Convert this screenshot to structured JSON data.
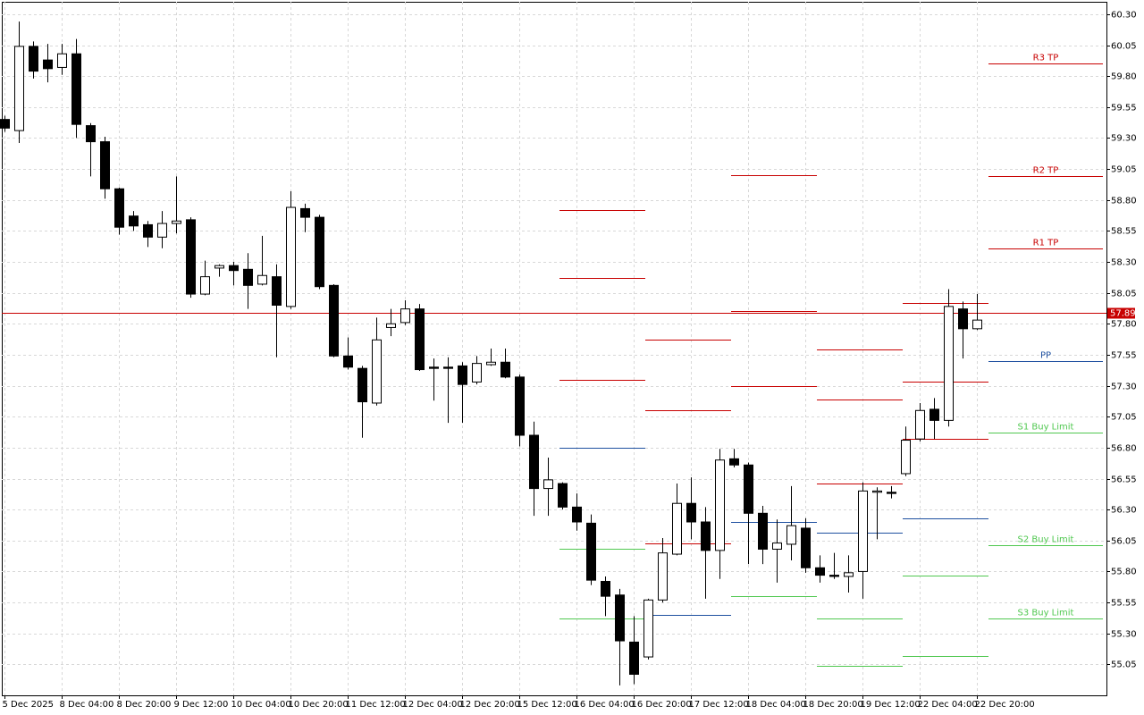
{
  "chart_data": {
    "type": "candlestick",
    "categories": [
      "5 Dec 2025",
      null,
      null,
      null,
      "8 Dec 04:00",
      null,
      null,
      null,
      "8 Dec 20:00",
      null,
      null,
      null,
      "9 Dec 12:00",
      null,
      null,
      null,
      "10 Dec 04:00",
      null,
      null,
      null,
      "10 Dec 20:00",
      null,
      null,
      null,
      "11 Dec 12:00",
      null,
      null,
      null,
      "12 Dec 04:00",
      null,
      null,
      null,
      "12 Dec 20:00",
      null,
      null,
      null,
      "15 Dec 12:00",
      null,
      null,
      null,
      "16 Dec 04:00",
      null,
      null,
      null,
      "16 Dec 20:00",
      null,
      null,
      null,
      "17 Dec 12:00",
      null,
      null,
      null,
      "18 Dec 04:00",
      null,
      null,
      null,
      "18 Dec 20:00",
      null,
      null,
      null,
      "19 Dec 12:00",
      null,
      null,
      null,
      "22 Dec 04:00",
      null,
      null,
      null,
      "22 Dec 20:00"
    ],
    "open": [
      59.45,
      59.36,
      60.04,
      59.93,
      59.87,
      59.98,
      59.4,
      59.27,
      58.89,
      58.67,
      58.6,
      58.5,
      58.61,
      58.64,
      58.04,
      58.25,
      58.27,
      58.24,
      58.12,
      58.18,
      57.94,
      58.73,
      58.66,
      58.11,
      57.54,
      57.44,
      57.16,
      57.77,
      57.81,
      57.92,
      57.45,
      57.45,
      57.46,
      57.33,
      57.47,
      57.49,
      57.37,
      56.9,
      56.47,
      56.51,
      56.32,
      56.19,
      55.72,
      55.61,
      55.23,
      55.11,
      55.57,
      55.94,
      56.35,
      56.2,
      55.97,
      56.71,
      56.66,
      56.27,
      55.98,
      56.02,
      56.15,
      55.83,
      55.77,
      55.76,
      55.8,
      56.44,
      56.44,
      56.59,
      56.87,
      57.11,
      57.02,
      57.92,
      57.76
    ],
    "high": [
      59.48,
      60.24,
      60.08,
      60.06,
      60.06,
      60.1,
      59.42,
      59.31,
      58.9,
      58.71,
      58.63,
      58.71,
      58.99,
      58.66,
      58.31,
      58.28,
      58.3,
      58.37,
      58.51,
      58.28,
      58.87,
      58.77,
      58.68,
      58.12,
      57.69,
      57.46,
      57.85,
      57.92,
      57.99,
      57.96,
      57.52,
      57.53,
      57.49,
      57.54,
      57.6,
      57.6,
      57.39,
      57.01,
      56.72,
      56.52,
      56.43,
      56.26,
      55.76,
      55.66,
      55.44,
      55.58,
      56.07,
      56.51,
      56.56,
      56.32,
      56.79,
      56.79,
      56.68,
      56.33,
      56.22,
      56.49,
      56.23,
      55.93,
      55.95,
      55.93,
      56.52,
      56.48,
      56.49,
      56.97,
      57.16,
      57.2,
      58.08,
      57.98,
      58.04
    ],
    "low": [
      59.35,
      59.26,
      59.78,
      59.75,
      59.81,
      59.3,
      58.99,
      58.81,
      58.52,
      58.55,
      58.42,
      58.41,
      58.53,
      58.01,
      58.03,
      58.18,
      58.11,
      57.92,
      58.11,
      57.53,
      57.92,
      58.54,
      58.08,
      57.53,
      57.43,
      56.88,
      57.14,
      57.7,
      57.79,
      57.42,
      57.18,
      57.0,
      57.0,
      57.31,
      57.46,
      57.36,
      56.81,
      56.25,
      56.25,
      56.3,
      56.13,
      55.69,
      55.44,
      54.88,
      54.89,
      55.09,
      55.55,
      55.93,
      56.06,
      55.58,
      55.74,
      56.64,
      55.86,
      55.86,
      55.71,
      55.89,
      55.79,
      55.71,
      55.74,
      55.63,
      55.58,
      56.06,
      56.39,
      56.57,
      56.85,
      56.87,
      56.97,
      57.52,
      57.75
    ],
    "close": [
      59.38,
      60.04,
      59.84,
      59.86,
      59.98,
      59.41,
      59.27,
      58.89,
      58.58,
      58.59,
      58.5,
      58.61,
      58.63,
      58.04,
      58.18,
      58.27,
      58.23,
      58.11,
      58.19,
      57.95,
      58.74,
      58.66,
      58.1,
      57.54,
      57.45,
      57.17,
      57.67,
      57.8,
      57.92,
      57.43,
      57.44,
      57.44,
      57.31,
      57.48,
      57.49,
      57.37,
      56.9,
      56.47,
      56.54,
      56.32,
      56.2,
      55.73,
      55.6,
      55.24,
      54.97,
      55.57,
      55.95,
      56.35,
      56.2,
      55.97,
      56.7,
      56.66,
      56.27,
      55.98,
      56.03,
      56.17,
      55.83,
      55.77,
      55.76,
      55.79,
      56.45,
      56.45,
      56.43,
      56.86,
      57.1,
      57.02,
      57.94,
      57.76,
      57.83
    ],
    "up_color": "#ffffff",
    "down_color": "#000000",
    "ylim": [
      54.8,
      60.4
    ],
    "yticks": [
      {
        "value": 60.3,
        "label": "60.30"
      },
      60.05,
      {
        "value": 59.8,
        "label": "59.80"
      },
      59.55,
      {
        "value": 59.3,
        "label": "59.30"
      },
      59.05,
      {
        "value": 58.8,
        "label": "58.80"
      },
      58.55,
      {
        "value": 58.3,
        "label": "58.30"
      },
      58.05,
      {
        "value": 57.8,
        "label": "57.80"
      },
      57.55,
      {
        "value": 57.3,
        "label": "57.30"
      },
      57.05,
      {
        "value": 56.8,
        "label": "56.80"
      },
      56.55,
      {
        "value": 56.3,
        "label": "56.30"
      },
      56.05,
      {
        "value": 55.8,
        "label": "55.80"
      },
      55.55,
      {
        "value": 55.3,
        "label": "55.30"
      },
      55.05
    ],
    "grid": true,
    "bid": 57.89,
    "bid_color": "#c80000",
    "levels": [
      {
        "value": 58.72,
        "color": "#c80000",
        "from": 39,
        "to": 45
      },
      {
        "value": 58.17,
        "color": "#c80000",
        "from": 39,
        "to": 45
      },
      {
        "value": 57.35,
        "color": "#c80000",
        "from": 39,
        "to": 45
      },
      {
        "value": 56.8,
        "color": "#1e50a0",
        "from": 39,
        "to": 45
      },
      {
        "value": 55.98,
        "color": "#50c850",
        "from": 39,
        "to": 45
      },
      {
        "value": 55.42,
        "color": "#50c850",
        "from": 39,
        "to": 45
      },
      {
        "value": 57.67,
        "color": "#c80000",
        "from": 45,
        "to": 51
      },
      {
        "value": 57.1,
        "color": "#c80000",
        "from": 45,
        "to": 51
      },
      {
        "value": 56.03,
        "color": "#c80000",
        "from": 45,
        "to": 51
      },
      {
        "value": 55.45,
        "color": "#1e50a0",
        "from": 45,
        "to": 51
      },
      {
        "value": 59.0,
        "color": "#c80000",
        "from": 51,
        "to": 57
      },
      {
        "value": 57.9,
        "color": "#c80000",
        "from": 51,
        "to": 57
      },
      {
        "value": 57.3,
        "color": "#c80000",
        "from": 51,
        "to": 57
      },
      {
        "value": 56.2,
        "color": "#1e50a0",
        "from": 51,
        "to": 57
      },
      {
        "value": 55.6,
        "color": "#50c850",
        "from": 51,
        "to": 57
      },
      {
        "value": 57.59,
        "color": "#c80000",
        "from": 57,
        "to": 63
      },
      {
        "value": 57.19,
        "color": "#c80000",
        "from": 57,
        "to": 63
      },
      {
        "value": 56.51,
        "color": "#c80000",
        "from": 57,
        "to": 63
      },
      {
        "value": 56.11,
        "color": "#1e50a0",
        "from": 57,
        "to": 63
      },
      {
        "value": 55.42,
        "color": "#50c850",
        "from": 57,
        "to": 63
      },
      {
        "value": 55.04,
        "color": "#50c850",
        "from": 57,
        "to": 63
      },
      {
        "value": 57.97,
        "color": "#c80000",
        "from": 63,
        "to": 69
      },
      {
        "value": 57.33,
        "color": "#c80000",
        "from": 63,
        "to": 69
      },
      {
        "value": 56.87,
        "color": "#c80000",
        "from": 63,
        "to": 69
      },
      {
        "value": 56.23,
        "color": "#1e50a0",
        "from": 63,
        "to": 69
      },
      {
        "value": 55.77,
        "color": "#50c850",
        "from": 63,
        "to": 69
      },
      {
        "value": 55.12,
        "color": "#50c850",
        "from": 63,
        "to": 69
      },
      {
        "label": "R3 TP",
        "value": 59.9,
        "color": "#c80000",
        "from": 69,
        "to": 77
      },
      {
        "label": "R2 TP",
        "value": 58.99,
        "color": "#c80000",
        "from": 69,
        "to": 77
      },
      {
        "label": "R1 TP",
        "value": 58.41,
        "color": "#c80000",
        "from": 69,
        "to": 77
      },
      {
        "label": "PP",
        "value": 57.5,
        "color": "#1e50a0",
        "from": 69,
        "to": 77
      },
      {
        "label": "S1 Buy Limit",
        "value": 56.92,
        "color": "#50c850",
        "from": 69,
        "to": 77
      },
      {
        "label": "S2 Buy Limit",
        "value": 56.01,
        "color": "#50c850",
        "from": 69,
        "to": 77
      },
      {
        "label": "S3 Buy Limit",
        "value": 55.42,
        "color": "#50c850",
        "from": 69,
        "to": 77
      }
    ]
  }
}
